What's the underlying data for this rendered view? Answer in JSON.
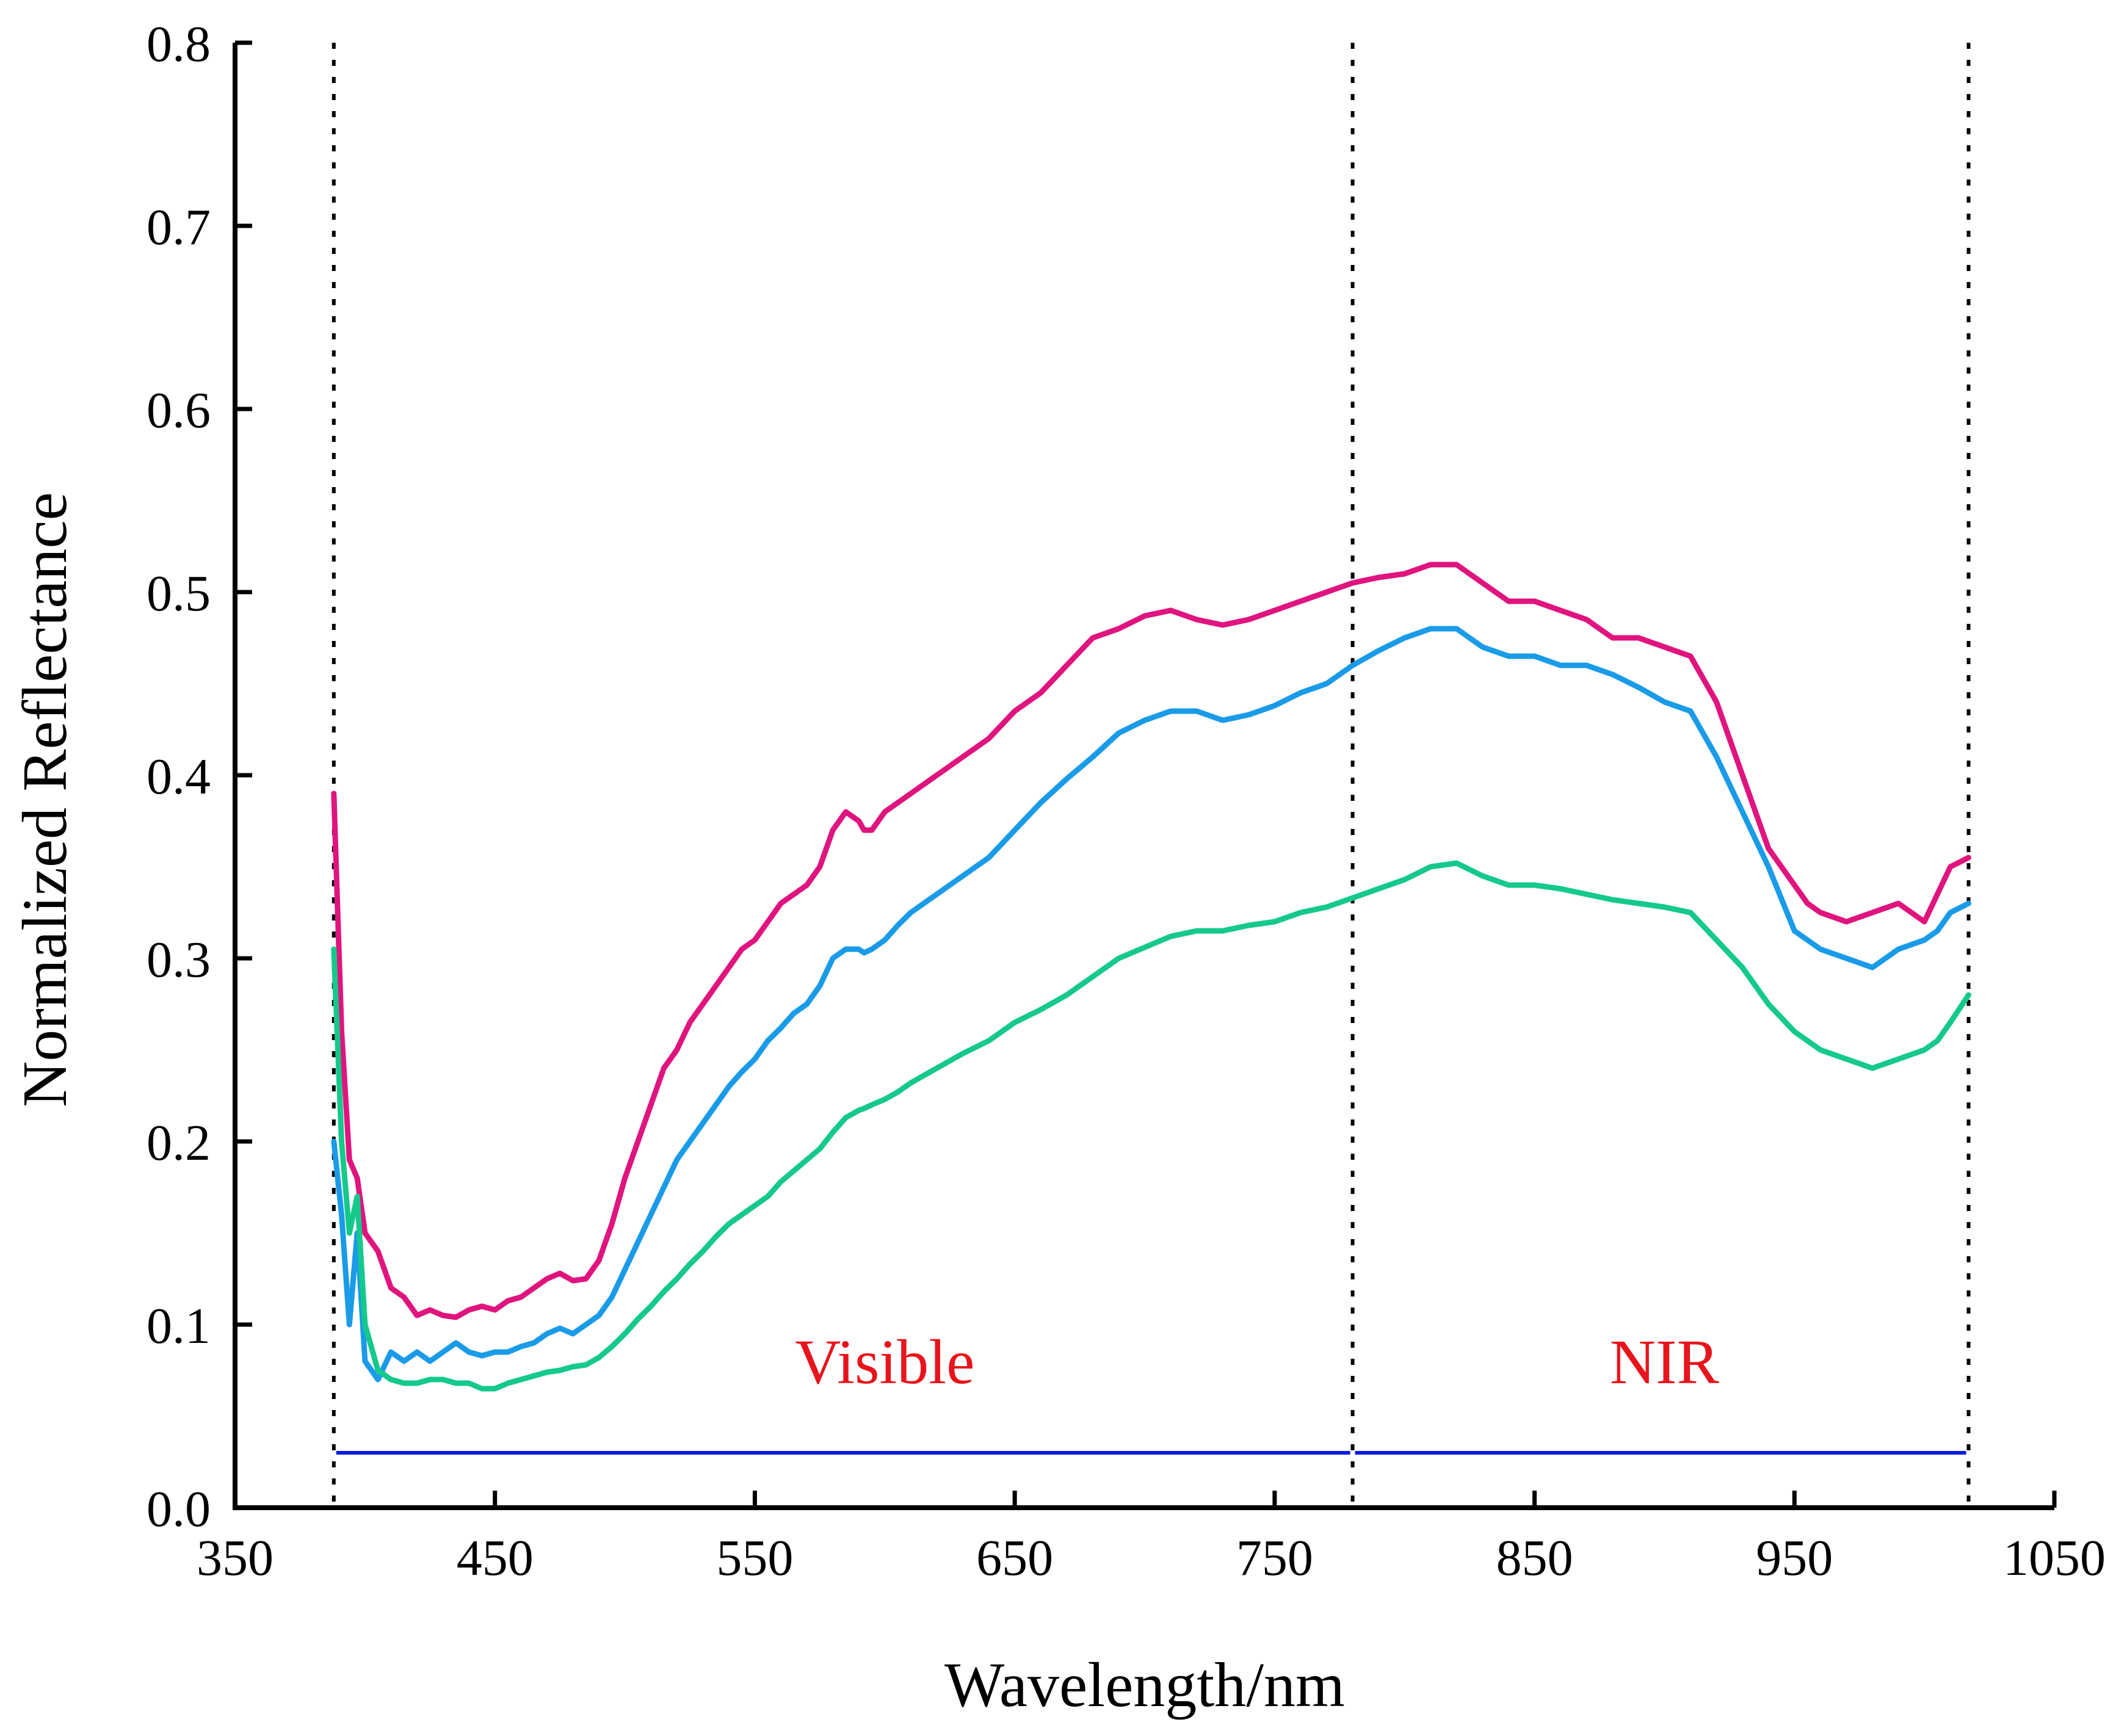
{
  "chart_data": {
    "type": "line",
    "title": "",
    "xlabel": "Wavelength/nm",
    "ylabel": "Normalized Reflectance",
    "xlim": [
      350,
      1050
    ],
    "ylim": [
      0.0,
      0.8
    ],
    "xticks": [
      "350",
      "450",
      "550",
      "650",
      "750",
      "850",
      "950",
      "1050"
    ],
    "yticks": [
      "0.0",
      "0.1",
      "0.2",
      "0.3",
      "0.4",
      "0.5",
      "0.6",
      "0.7",
      "0.8"
    ],
    "grid": false,
    "legend": "none",
    "series": [
      {
        "name": "magenta",
        "color": "#E0147E",
        "x": [
          388,
          391,
          394,
          397,
          400,
          405,
          410,
          415,
          420,
          425,
          430,
          435,
          440,
          445,
          450,
          455,
          460,
          465,
          470,
          475,
          480,
          485,
          490,
          495,
          500,
          505,
          510,
          515,
          520,
          525,
          530,
          535,
          540,
          545,
          550,
          555,
          560,
          565,
          570,
          575,
          580,
          585,
          590,
          592,
          595,
          600,
          605,
          610,
          615,
          620,
          625,
          630,
          640,
          650,
          660,
          670,
          680,
          690,
          700,
          710,
          720,
          730,
          740,
          750,
          760,
          770,
          780,
          790,
          800,
          810,
          820,
          830,
          840,
          850,
          860,
          870,
          880,
          890,
          900,
          910,
          920,
          930,
          940,
          950,
          955,
          960,
          970,
          980,
          990,
          1000,
          1005,
          1010,
          1017
        ],
        "y": [
          0.39,
          0.26,
          0.19,
          0.18,
          0.15,
          0.14,
          0.12,
          0.115,
          0.105,
          0.108,
          0.105,
          0.104,
          0.108,
          0.11,
          0.108,
          0.113,
          0.115,
          0.12,
          0.125,
          0.128,
          0.124,
          0.125,
          0.135,
          0.155,
          0.18,
          0.2,
          0.22,
          0.24,
          0.25,
          0.265,
          0.275,
          0.285,
          0.295,
          0.305,
          0.31,
          0.32,
          0.33,
          0.335,
          0.34,
          0.35,
          0.37,
          0.38,
          0.375,
          0.37,
          0.37,
          0.38,
          0.385,
          0.39,
          0.395,
          0.4,
          0.405,
          0.41,
          0.42,
          0.435,
          0.445,
          0.46,
          0.475,
          0.48,
          0.487,
          0.49,
          0.485,
          0.482,
          0.485,
          0.49,
          0.495,
          0.5,
          0.505,
          0.508,
          0.51,
          0.515,
          0.515,
          0.505,
          0.495,
          0.495,
          0.49,
          0.485,
          0.475,
          0.475,
          0.47,
          0.465,
          0.44,
          0.4,
          0.36,
          0.34,
          0.33,
          0.325,
          0.32,
          0.325,
          0.33,
          0.32,
          0.335,
          0.35,
          0.355
        ]
      },
      {
        "name": "blue",
        "color": "#1A9BE8",
        "x": [
          388,
          391,
          394,
          397,
          400,
          405,
          410,
          415,
          420,
          425,
          430,
          435,
          440,
          445,
          450,
          455,
          460,
          465,
          470,
          475,
          480,
          485,
          490,
          495,
          500,
          505,
          510,
          515,
          520,
          525,
          530,
          535,
          540,
          545,
          550,
          555,
          560,
          565,
          570,
          575,
          580,
          585,
          590,
          592,
          595,
          600,
          605,
          610,
          615,
          620,
          625,
          630,
          640,
          650,
          660,
          670,
          680,
          690,
          700,
          710,
          720,
          730,
          740,
          750,
          760,
          770,
          780,
          790,
          800,
          810,
          820,
          830,
          840,
          850,
          860,
          870,
          880,
          890,
          900,
          910,
          920,
          930,
          940,
          950,
          955,
          960,
          970,
          980,
          990,
          1000,
          1005,
          1010,
          1017
        ],
        "y": [
          0.2,
          0.16,
          0.1,
          0.15,
          0.08,
          0.07,
          0.085,
          0.08,
          0.085,
          0.08,
          0.085,
          0.09,
          0.085,
          0.083,
          0.085,
          0.085,
          0.088,
          0.09,
          0.095,
          0.098,
          0.095,
          0.1,
          0.105,
          0.115,
          0.13,
          0.145,
          0.16,
          0.175,
          0.19,
          0.2,
          0.21,
          0.22,
          0.23,
          0.238,
          0.245,
          0.255,
          0.262,
          0.27,
          0.275,
          0.285,
          0.3,
          0.305,
          0.305,
          0.303,
          0.305,
          0.31,
          0.318,
          0.325,
          0.33,
          0.335,
          0.34,
          0.345,
          0.355,
          0.37,
          0.385,
          0.398,
          0.41,
          0.423,
          0.43,
          0.435,
          0.435,
          0.43,
          0.433,
          0.438,
          0.445,
          0.45,
          0.46,
          0.468,
          0.475,
          0.48,
          0.48,
          0.47,
          0.465,
          0.465,
          0.46,
          0.46,
          0.455,
          0.448,
          0.44,
          0.435,
          0.41,
          0.38,
          0.35,
          0.315,
          0.31,
          0.305,
          0.3,
          0.295,
          0.305,
          0.31,
          0.315,
          0.325,
          0.33
        ]
      },
      {
        "name": "green",
        "color": "#15C98A",
        "x": [
          388,
          391,
          394,
          397,
          400,
          405,
          410,
          415,
          420,
          425,
          430,
          435,
          440,
          445,
          450,
          455,
          460,
          465,
          470,
          475,
          480,
          485,
          490,
          495,
          500,
          505,
          510,
          515,
          520,
          525,
          530,
          535,
          540,
          545,
          550,
          555,
          560,
          565,
          570,
          575,
          580,
          585,
          590,
          592,
          595,
          600,
          605,
          610,
          615,
          620,
          625,
          630,
          640,
          650,
          660,
          670,
          680,
          690,
          700,
          710,
          720,
          730,
          740,
          750,
          760,
          770,
          780,
          790,
          800,
          810,
          820,
          830,
          840,
          850,
          860,
          870,
          880,
          890,
          900,
          910,
          920,
          930,
          940,
          950,
          955,
          960,
          970,
          980,
          990,
          1000,
          1005,
          1010,
          1017
        ],
        "y": [
          0.305,
          0.2,
          0.15,
          0.17,
          0.1,
          0.075,
          0.07,
          0.068,
          0.068,
          0.07,
          0.07,
          0.068,
          0.068,
          0.065,
          0.065,
          0.068,
          0.07,
          0.072,
          0.074,
          0.075,
          0.077,
          0.078,
          0.082,
          0.088,
          0.095,
          0.103,
          0.11,
          0.118,
          0.125,
          0.133,
          0.14,
          0.148,
          0.155,
          0.16,
          0.165,
          0.17,
          0.178,
          0.184,
          0.19,
          0.196,
          0.205,
          0.213,
          0.217,
          0.218,
          0.22,
          0.223,
          0.227,
          0.232,
          0.236,
          0.24,
          0.244,
          0.248,
          0.255,
          0.265,
          0.272,
          0.28,
          0.29,
          0.3,
          0.306,
          0.312,
          0.315,
          0.315,
          0.318,
          0.32,
          0.325,
          0.328,
          0.333,
          0.338,
          0.343,
          0.35,
          0.352,
          0.345,
          0.34,
          0.34,
          0.338,
          0.335,
          0.332,
          0.33,
          0.328,
          0.325,
          0.31,
          0.295,
          0.275,
          0.26,
          0.255,
          0.25,
          0.245,
          0.24,
          0.245,
          0.25,
          0.255,
          0.265,
          0.28
        ]
      }
    ],
    "vlines": [
      388,
      780,
      1017
    ],
    "regions": [
      {
        "label": "Visible",
        "from": 388,
        "to": 780,
        "label_x": 600,
        "label_y": 0.08,
        "arrow_y": 0.03
      },
      {
        "label": "NIR",
        "from": 780,
        "to": 1017,
        "label_x": 900,
        "label_y": 0.08,
        "arrow_y": 0.03
      }
    ],
    "annotation_color": "#E8141C",
    "arrow_color": "#0B1AE0"
  }
}
